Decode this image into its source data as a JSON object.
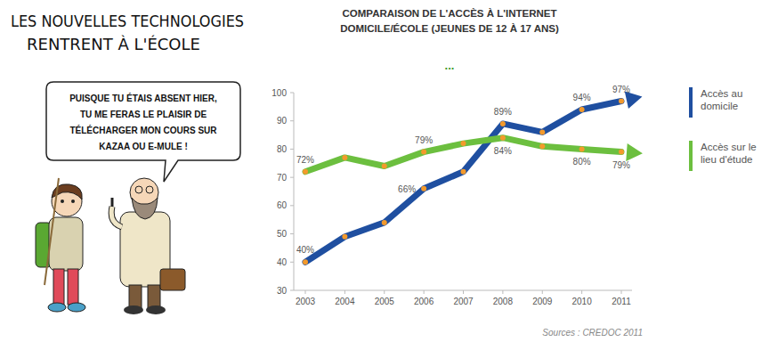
{
  "chart_data": {
    "type": "line",
    "title": "COMPARAISON DE L'ACCÈS À L'INTERNET DOMICILE/ÉCOLE (JEUNES DE 12 À 17 ANS)",
    "subtitle": "...",
    "categories": [
      "2003",
      "2004",
      "2005",
      "2006",
      "2007",
      "2008",
      "2009",
      "2010",
      "2011"
    ],
    "series": [
      {
        "name": "Accès au domicile",
        "color": "#1f4fa0",
        "marker": "circle",
        "values": [
          40,
          49,
          54,
          66,
          72,
          89,
          86,
          94,
          97
        ],
        "value_labels": [
          "40%",
          null,
          null,
          "66%",
          null,
          "89%",
          null,
          "94%",
          "97%"
        ]
      },
      {
        "name": "Accès sur le lieu d'étude",
        "color": "#6cbf3f",
        "marker": "circle",
        "values": [
          72,
          77,
          74,
          79,
          82,
          84,
          81,
          80,
          79
        ],
        "value_labels": [
          "72%",
          null,
          null,
          "79%",
          null,
          "84%",
          null,
          "80%",
          "79%"
        ]
      }
    ],
    "ylim": [
      30,
      100
    ],
    "yticks": [
      30,
      40,
      50,
      60,
      70,
      80,
      90,
      100
    ],
    "grid": false,
    "legend": "right",
    "data_labels": true,
    "source": "Sources : CREDOC 2011"
  },
  "comic": {
    "caption": [
      "LES NOUVELLES TECHNOLOGIES",
      "RENTRENT À L'ÉCOLE"
    ],
    "speech": [
      "PUISQUE TU ÉTAIS ABSENT HIER,",
      "TU ME FERAS LE PLAISIR DE",
      "TÉLÉCHARGER MON COURS SUR",
      "KAZAA OU E-MULE !"
    ]
  }
}
